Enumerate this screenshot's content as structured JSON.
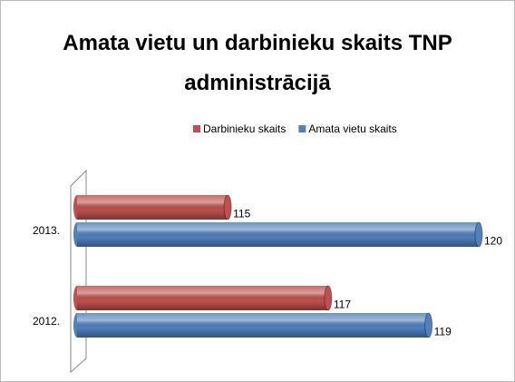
{
  "chart_data": {
    "type": "bar",
    "orientation": "horizontal",
    "title": "Amata vietu un darbinieku skaits TNP administrācijā",
    "categories": [
      "2013.",
      "2012."
    ],
    "series": [
      {
        "name": "Darbinieku skaits",
        "color": "#c0504d",
        "values": [
          115,
          117
        ]
      },
      {
        "name": "Amata vietu skaits",
        "color": "#4f81bd",
        "values": [
          120,
          119
        ]
      }
    ],
    "xlim": [
      112,
      120
    ],
    "legend": "top"
  }
}
